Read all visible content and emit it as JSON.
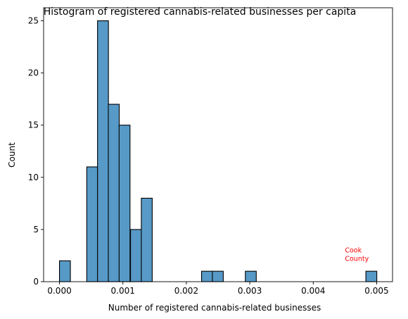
{
  "chart_data": {
    "type": "bar",
    "title": "Histogram of registered cannabis-related businesses per capita",
    "xlabel": "Number of registered cannabis-related businesses",
    "ylabel": "Count",
    "xlim": [
      -0.00025,
      0.00525
    ],
    "ylim": [
      0,
      26.25
    ],
    "xticks": [
      0.0,
      0.001,
      0.002,
      0.003,
      0.004,
      0.005
    ],
    "xtick_labels": [
      "0.000",
      "0.001",
      "0.002",
      "0.003",
      "0.004",
      "0.005"
    ],
    "yticks": [
      0,
      5,
      10,
      15,
      20,
      25
    ],
    "ytick_labels": [
      "0",
      "5",
      "10",
      "15",
      "20",
      "25"
    ],
    "bin_width": 0.000172,
    "bins": [
      {
        "x0": 0.0,
        "count": 2
      },
      {
        "x0": 0.00043,
        "count": 11
      },
      {
        "x0": 0.0006,
        "count": 25
      },
      {
        "x0": 0.00077,
        "count": 17
      },
      {
        "x0": 0.00094,
        "count": 15
      },
      {
        "x0": 0.00112,
        "count": 5
      },
      {
        "x0": 0.00129,
        "count": 8
      },
      {
        "x0": 0.00224,
        "count": 1
      },
      {
        "x0": 0.00241,
        "count": 1
      },
      {
        "x0": 0.00293,
        "count": 1
      },
      {
        "x0": 0.00483,
        "count": 1
      }
    ],
    "bar_color": "#5799c7",
    "grid": false,
    "annotations": [
      {
        "lines": [
          "Cook",
          "County"
        ],
        "x": 0.0045,
        "y": 2.0,
        "color": "#ff0000"
      }
    ]
  }
}
